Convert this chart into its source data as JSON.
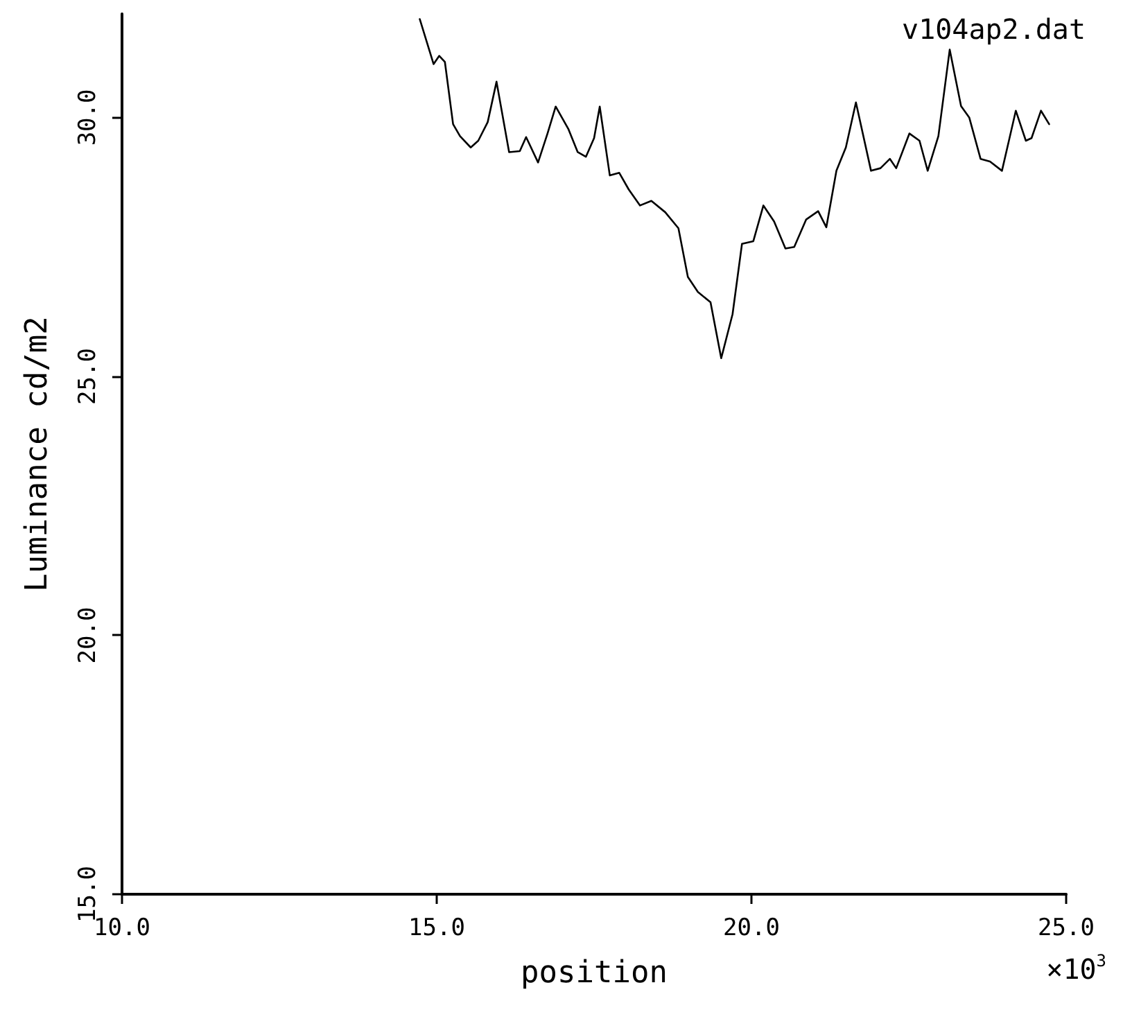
{
  "chart_data": {
    "type": "line",
    "title": "v104ap2.dat",
    "xlabel": "position",
    "ylabel": "Luminance cd/m2",
    "annotations": [
      "×10$^{3}$"
    ],
    "x": [
      14.73,
      14.95,
      15.04,
      15.13,
      15.26,
      15.37,
      15.54,
      15.66,
      15.81,
      15.95,
      16.15,
      16.32,
      16.42,
      16.61,
      16.76,
      16.89,
      17.09,
      17.24,
      17.37,
      17.5,
      17.59,
      17.75,
      17.9,
      18.05,
      18.23,
      18.41,
      18.63,
      18.84,
      18.99,
      19.15,
      19.35,
      19.52,
      19.7,
      19.85,
      20.03,
      20.19,
      20.36,
      20.54,
      20.68,
      20.87,
      21.06,
      21.19,
      21.35,
      21.5,
      21.66,
      21.9,
      22.05,
      22.2,
      22.3,
      22.51,
      22.67,
      22.8,
      22.97,
      23.15,
      23.33,
      23.46,
      23.64,
      23.79,
      23.98,
      24.1,
      24.2,
      24.36,
      24.45,
      24.6,
      24.73
    ],
    "series": [
      {
        "color": "#000000",
        "values": [
          31.9,
          31.03,
          31.19,
          31.07,
          29.87,
          29.64,
          29.42,
          29.55,
          29.91,
          30.69,
          29.33,
          29.35,
          29.62,
          29.13,
          29.69,
          30.21,
          29.78,
          29.33,
          29.24,
          29.6,
          30.21,
          28.88,
          28.93,
          28.61,
          28.3,
          28.39,
          28.17,
          27.86,
          26.92,
          26.63,
          26.43,
          25.35,
          26.2,
          27.56,
          27.61,
          28.3,
          27.99,
          27.47,
          27.5,
          28.03,
          28.19,
          27.88,
          28.97,
          29.42,
          30.29,
          28.97,
          29.02,
          29.2,
          29.02,
          29.69,
          29.55,
          28.97,
          29.64,
          31.31,
          30.22,
          30.0,
          29.2,
          29.15,
          28.97,
          29.6,
          30.13,
          29.55,
          29.6,
          30.13,
          29.87
        ]
      }
    ],
    "xlim": [
      10,
      25
    ],
    "xticks": [
      {
        "value": 10,
        "label": "10.0"
      },
      {
        "value": 15,
        "label": "15.0"
      },
      {
        "value": 20,
        "label": "20.0"
      },
      {
        "value": 25,
        "label": "25.0"
      }
    ],
    "ylim": [
      15,
      32
    ],
    "yticks": [
      {
        "value": 15,
        "label": "15.0"
      },
      {
        "value": 20,
        "label": "20.0"
      },
      {
        "value": 25,
        "label": "25.0"
      },
      {
        "value": 30,
        "label": "30.0"
      }
    ],
    "grid": false,
    "marker": "none",
    "line_style": "solid"
  }
}
